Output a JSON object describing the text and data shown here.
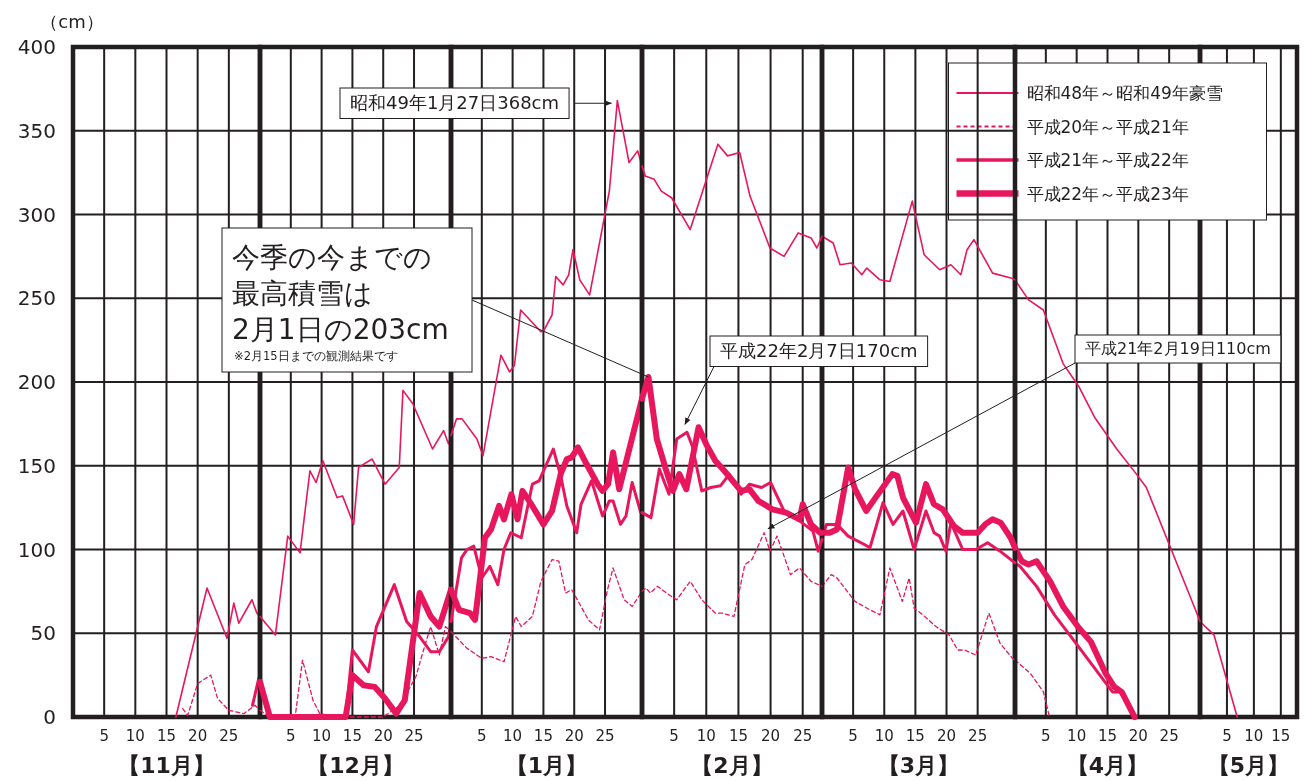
{
  "chart_data": [
    {
      "type": "line",
      "xlabel": "【11月】",
      "ylabel": "（cm）",
      "xlim": [
        0,
        30
      ],
      "ylim": [
        0,
        400
      ],
      "xticks": [
        5,
        10,
        15,
        20,
        25
      ],
      "yticks": [
        0,
        50,
        100,
        150,
        200,
        250,
        300,
        350,
        400
      ],
      "grid": true,
      "series": [
        {
          "color": "#e8175d",
          "line_style": "solid",
          "x": [
            16.5,
            21.5,
            24.7,
            25.8,
            26.6,
            28.7,
            29.5,
            30
          ],
          "values": [
            0,
            77,
            47,
            68,
            56,
            70,
            62,
            60
          ]
        },
        {
          "color": "#e8175d",
          "line_style": "dashed",
          "x": [
            17.6,
            18.4,
            20.0,
            22.1,
            23.2,
            25.0,
            27.4,
            29.2,
            30
          ],
          "values": [
            5,
            1,
            20,
            25,
            11,
            4,
            2,
            7,
            4
          ]
        },
        {
          "color": "#e8175d",
          "line_style": "solid",
          "x": [
            28.8,
            29.8,
            30
          ],
          "values": [
            7,
            23,
            21
          ]
        }
      ]
    },
    {
      "type": "line",
      "xlabel": "【12月】",
      "xlim": [
        0,
        31
      ],
      "ylim": [
        0,
        400
      ],
      "xticks": [
        5,
        10,
        15,
        20,
        25
      ],
      "yticks": [
        0,
        50,
        100,
        150,
        200,
        250,
        300,
        350,
        400
      ],
      "tick_labels": "x",
      "grid": true,
      "series": [
        {
          "color": "#e8175d",
          "line_style": "solid",
          "x": [
            0,
            2.5,
            4.5,
            6.5,
            8.1,
            9.1,
            10.2,
            12.5,
            13.4,
            15.2,
            16.0,
            18.2,
            20.3,
            22.6,
            23.2,
            24.8,
            28.0,
            29.8,
            30.6,
            31
          ],
          "values": [
            60,
            49,
            108,
            98,
            147,
            140,
            153,
            131,
            132,
            115,
            149,
            154,
            139,
            149,
            195,
            187,
            160,
            171,
            163,
            168
          ]
        },
        {
          "color": "#e8175d",
          "line_style": "dashed",
          "x": [
            0,
            1.6,
            5.7,
            6.9,
            8.6,
            9.7,
            12.8,
            20.0,
            22.7,
            25.3,
            26.3,
            27.7,
            29.1,
            30.1,
            31
          ],
          "values": [
            4,
            0,
            0,
            34,
            10,
            2,
            0,
            0,
            7,
            24,
            37,
            54,
            37,
            54,
            51
          ]
        },
        {
          "color": "#e8175d",
          "line_style": "solid",
          "x": [
            1.6,
            13.9,
            15.0,
            17.6,
            18.9,
            21.8,
            23.8,
            25.9,
            27.7,
            29.1,
            30.6,
            31
          ],
          "values": [
            0,
            0,
            40,
            27,
            54,
            79,
            57,
            48,
            39,
            39,
            48,
            57
          ]
        },
        {
          "color": "#e8175d",
          "line_style": "solid",
          "x": [
            0,
            1.6,
            13.9,
            15.0,
            16.8,
            18.6,
            20.3,
            22.1,
            23.5,
            25.9,
            27.7,
            29.1,
            31
          ],
          "values": [
            21,
            0,
            0,
            25,
            19,
            18,
            11,
            2,
            10,
            74,
            60,
            54,
            76
          ]
        }
      ]
    },
    {
      "type": "line",
      "xlabel": "【1月】",
      "xlim": [
        0,
        31
      ],
      "ylim": [
        0,
        400
      ],
      "xticks": [
        5,
        10,
        15,
        20,
        25
      ],
      "yticks": [
        0,
        50,
        100,
        150,
        200,
        250,
        300,
        350,
        400
      ],
      "tick_labels": "x",
      "grid": true,
      "series": [
        {
          "color": "#e8175d",
          "line_style": "solid",
          "x": [
            0,
            0.9,
            1.8,
            4.2,
            5.2,
            8.1,
            9.5,
            10.3,
            11.3,
            14.6,
            15.1,
            16.4,
            17.0,
            18.2,
            19.1,
            19.8,
            20.9,
            22.5,
            25.7,
            27,
            28.9,
            30.3,
            31
          ],
          "values": [
            168,
            178,
            178,
            166,
            156,
            216,
            206,
            210,
            243,
            230,
            231,
            240,
            263,
            258,
            264,
            279,
            261,
            252,
            314,
            368,
            331,
            338,
            329
          ]
        },
        {
          "color": "#e8175d",
          "line_style": "dashed",
          "x": [
            0,
            0.5,
            2.6,
            5.0,
            6.5,
            8.6,
            10.5,
            11.4,
            13.2,
            14.6,
            16.4,
            17.5,
            18.6,
            19.6,
            22.3,
            24.1,
            25.4,
            26.3,
            28.1,
            29.4,
            31
          ],
          "values": [
            51,
            49,
            41,
            35,
            36,
            33,
            60,
            54,
            60,
            81,
            94,
            93,
            74,
            76,
            58,
            52,
            76,
            89,
            70,
            66,
            75
          ]
        },
        {
          "color": "#e8175d",
          "line_style": "solid",
          "x": [
            0,
            1.7,
            2.6,
            3.7,
            5.0,
            6.3,
            7.6,
            8.6,
            9.7,
            11.4,
            13.2,
            14.3,
            16.6,
            17.8,
            18.8,
            20.4,
            21.1,
            22.8,
            24.6,
            25.7,
            26.3,
            27.5,
            28.4,
            29.4,
            30.8,
            31
          ],
          "values": [
            57,
            95,
            100,
            102,
            83,
            90,
            79,
            100,
            110,
            107,
            139,
            141,
            160,
            144,
            126,
            110,
            127,
            141,
            120,
            129,
            129,
            115,
            120,
            140,
            122,
            122
          ]
        },
        {
          "color": "#e8175d",
          "line_style": "solid",
          "x": [
            0,
            1.3,
            3.1,
            3.9,
            5.5,
            6.5,
            7.8,
            8.6,
            9.8,
            10.8,
            11.6,
            13.2,
            15.0,
            16.4,
            17.8,
            18.8,
            19.6,
            20.6,
            22.0,
            23.8,
            24.6,
            25.5,
            26.3,
            27.3,
            31
          ],
          "values": [
            76,
            64,
            62,
            58,
            107,
            112,
            126,
            118,
            133,
            118,
            135,
            126,
            115,
            123,
            145,
            154,
            155,
            161,
            151,
            139,
            135,
            139,
            158,
            136,
            190
          ]
        }
      ],
      "annotations": [
        {
          "text": "昭和49年1月27日368cm",
          "x": 27,
          "y": 368
        }
      ]
    },
    {
      "type": "line",
      "xlabel": "【2月】",
      "xlim": [
        0,
        28
      ],
      "ylim": [
        0,
        400
      ],
      "xticks": [
        5,
        10,
        15,
        20,
        25
      ],
      "yticks": [
        0,
        50,
        100,
        150,
        200,
        250,
        300,
        350,
        400
      ],
      "tick_labels": "x",
      "grid": true,
      "series": [
        {
          "color": "#e8175d",
          "line_style": "solid",
          "x": [
            0,
            0.5,
            1.9,
            3.0,
            4.6,
            7.5,
            11.8,
            13.3,
            15.2,
            16.8,
            19.9,
            22.1,
            24.3,
            26.3,
            27.2,
            28
          ],
          "values": [
            329,
            323,
            321,
            314,
            310,
            291,
            342,
            335,
            337,
            311,
            280,
            275,
            289,
            286,
            280,
            287
          ]
        },
        {
          "color": "#e8175d",
          "line_style": "dashed",
          "x": [
            0,
            0.6,
            1.3,
            2.4,
            4.2,
            5.4,
            7.5,
            9.3,
            11.4,
            12.5,
            14.3,
            16.0,
            17.1,
            19,
            19.9,
            21.0,
            23.1,
            24.5,
            26.3,
            28
          ],
          "values": [
            75,
            77,
            74,
            78,
            73,
            70,
            81,
            70,
            62,
            62,
            60,
            91,
            94,
            110,
            99,
            108,
            85,
            89,
            81,
            78
          ]
        },
        {
          "color": "#e8175d",
          "line_style": "solid",
          "x": [
            0,
            1.4,
            2.7,
            4.2,
            5.4,
            7,
            7.8,
            9.3,
            10.7,
            12.2,
            13.6,
            15.4,
            16.7,
            18.6,
            20.0,
            22.1,
            24.2,
            26.6,
            27.4,
            28
          ],
          "values": [
            122,
            119,
            148,
            133,
            166,
            170,
            162,
            135,
            137,
            138,
            145,
            133,
            139,
            137,
            140,
            123,
            118,
            111,
            99,
            106
          ]
        },
        {
          "color": "#e8175d",
          "line_style": "solid",
          "x": [
            0,
            1,
            2.3,
            3.7,
            4.8,
            5.8,
            6.9,
            8.8,
            10.1,
            11.4,
            12.8,
            15.4,
            16.7,
            18.1,
            20.3,
            22.4,
            24.5,
            25.0,
            26.3,
            27.7,
            28
          ],
          "values": [
            190,
            203,
            166,
            148,
            135,
            145,
            136,
            173,
            162,
            153,
            147,
            135,
            136,
            129,
            124,
            122,
            118,
            127,
            115,
            110,
            110
          ]
        }
      ],
      "annotations": [
        {
          "text": "平成22年2月7日170cm",
          "x": 7,
          "y": 170
        },
        {
          "text": "平成21年2月19日110cm",
          "x": 19,
          "y": 110
        },
        "今季の今までの",
        "最高積雪は",
        {
          "text": "2月1日の203cm",
          "x": 1,
          "y": 203
        },
        "※2月15日までの観測結果です"
      ]
    },
    {
      "type": "line",
      "xlabel": "【3月】",
      "xlim": [
        0,
        31
      ],
      "ylim": [
        0,
        400
      ],
      "xticks": [
        5,
        10,
        15,
        20,
        25
      ],
      "yticks": [
        0,
        50,
        100,
        150,
        200,
        250,
        300,
        350,
        400
      ],
      "tick_labels": "x",
      "grid": true,
      "series": [
        {
          "color": "#e8175d",
          "line_style": "solid",
          "x": [
            0,
            1.8,
            2.9,
            4.7,
            6.4,
            7.2,
            9.3,
            10.9,
            14.5,
            16.4,
            18.9,
            20.7,
            22.3,
            23.3,
            24.4,
            27.4,
            30.5,
            31
          ],
          "values": [
            287,
            283,
            270,
            271,
            264,
            268,
            261,
            260,
            308,
            276,
            267,
            270,
            264,
            279,
            285,
            265,
            262,
            261
          ]
        },
        {
          "color": "#e8175d",
          "line_style": "dashed",
          "x": [
            0,
            1.5,
            2.4,
            5.3,
            7.7,
            9.3,
            10.9,
            12.9,
            14.0,
            14.8,
            16.2,
            18.3,
            20.4,
            21.8,
            22.9,
            24.7,
            26.8,
            28.6,
            30.6,
            31
          ],
          "values": [
            78,
            85,
            83,
            69,
            64,
            61,
            89,
            69,
            83,
            65,
            61,
            54,
            49,
            40,
            40,
            37,
            62,
            44,
            35,
            34
          ]
        },
        {
          "color": "#e8175d",
          "line_style": "solid",
          "x": [
            0,
            0.7,
            2.4,
            4.2,
            6.8,
            7.7,
            9.8,
            11.4,
            13.0,
            14.8,
            16.7,
            18.0,
            18.9,
            19.9,
            20.7,
            22.6,
            24.7,
            26.6,
            28.6,
            31
          ],
          "values": [
            106,
            115,
            115,
            108,
            103,
            101,
            128,
            115,
            123,
            100,
            123,
            110,
            108,
            99,
            116,
            100,
            100,
            104,
            99,
            92
          ]
        },
        {
          "color": "#e8175d",
          "line_style": "solid",
          "x": [
            0,
            1.2,
            2.4,
            4.2,
            5.3,
            7.1,
            8.8,
            11.3,
            12.1,
            13.0,
            15.1,
            16.7,
            18.0,
            19.4,
            21.2,
            22.6,
            25.0,
            26.2,
            27.4,
            28.7,
            30.3,
            31
          ],
          "values": [
            110,
            110,
            112,
            149,
            136,
            123,
            132,
            145,
            144,
            131,
            116,
            139,
            127,
            124,
            114,
            110,
            110,
            115,
            118,
            116,
            107,
            101
          ]
        }
      ]
    },
    {
      "type": "line",
      "xlabel": "【4月】",
      "xlim": [
        0,
        30
      ],
      "ylim": [
        0,
        400
      ],
      "xticks": [
        5,
        10,
        15,
        20,
        25
      ],
      "yticks": [
        0,
        50,
        100,
        150,
        200,
        250,
        300,
        350,
        400
      ],
      "tick_labels": "x",
      "grid": true,
      "legend": "top",
      "series": [
        {
          "name": "昭和48年～昭和49年豪雪",
          "color": "#e8175d",
          "line_style": "solid",
          "x": [
            0,
            2.2,
            4.6,
            7.8,
            10.4,
            12.9,
            16.5,
            19.7,
            21.3,
            29.7,
            30
          ],
          "values": [
            261,
            249,
            243,
            211,
            197,
            179,
            160,
            145,
            137,
            60,
            57
          ]
        },
        {
          "name": "平成20年～平成21年",
          "color": "#e8175d",
          "line_style": "dashed",
          "x": [
            0,
            2.5,
            4.6,
            5.6
          ],
          "values": [
            34,
            26,
            15,
            0
          ]
        },
        {
          "name": "平成21年～平成22年",
          "color": "#e8175d",
          "line_style": "solid",
          "x": [
            0,
            0.8,
            3.5,
            6.4,
            9.9,
            15.8,
            17.3,
            19.2
          ],
          "values": [
            92,
            90,
            78,
            61,
            44,
            15,
            15,
            0
          ]
        },
        {
          "name": "平成22年～平成23年",
          "color": "#e8175d",
          "line_style": "solid",
          "x": [
            0,
            1.1,
            2.2,
            3.5,
            5.7,
            7.8,
            10.4,
            12.3,
            14.7,
            16.1,
            17.3,
            19.4
          ],
          "values": [
            101,
            93,
            91,
            93,
            81,
            66,
            53,
            45,
            26,
            18,
            15,
            0
          ]
        }
      ]
    },
    {
      "type": "line",
      "xlabel": "【5月】",
      "xlim": [
        0,
        18
      ],
      "ylim": [
        0,
        400
      ],
      "xticks": [
        5,
        10,
        15
      ],
      "yticks": [
        0,
        50,
        100,
        150,
        200,
        250,
        300,
        350,
        400
      ],
      "tick_labels": "x",
      "grid": true,
      "series": [
        {
          "color": "#e8175d",
          "line_style": "solid",
          "x": [
            0,
            2.6,
            6.9
          ],
          "values": [
            57,
            49,
            0
          ]
        }
      ]
    }
  ]
}
